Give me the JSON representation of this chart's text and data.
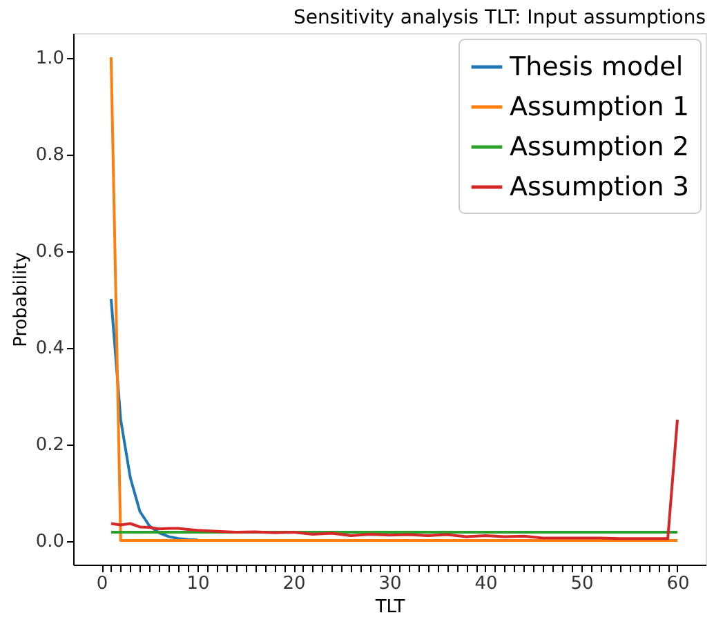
{
  "chart_data": {
    "type": "line",
    "title": "Sensitivity analysis TLT: Input assumptions",
    "xlabel": "TLT",
    "ylabel": "Probability",
    "xlim": [
      -2.95,
      62.95
    ],
    "ylim": [
      -0.05,
      1.05
    ],
    "xticks": [
      0,
      {
        "value": 1,
        "label": null
      },
      {
        "value": 2,
        "label": null
      },
      {
        "value": 3,
        "label": null
      },
      {
        "value": 4,
        "label": null
      },
      {
        "value": 5,
        "label": null
      },
      {
        "value": 6,
        "label": null
      },
      {
        "value": 7,
        "label": null
      },
      {
        "value": 8,
        "label": null
      },
      {
        "value": 9,
        "label": null
      },
      10,
      {
        "value": 11,
        "label": null
      },
      {
        "value": 12,
        "label": null
      },
      {
        "value": 13,
        "label": null
      },
      {
        "value": 14,
        "label": null
      },
      {
        "value": 15,
        "label": null
      },
      {
        "value": 16,
        "label": null
      },
      {
        "value": 17,
        "label": null
      },
      {
        "value": 18,
        "label": null
      },
      {
        "value": 19,
        "label": null
      },
      20,
      {
        "value": 21,
        "label": null
      },
      {
        "value": 22,
        "label": null
      },
      {
        "value": 23,
        "label": null
      },
      {
        "value": 24,
        "label": null
      },
      {
        "value": 25,
        "label": null
      },
      {
        "value": 26,
        "label": null
      },
      {
        "value": 27,
        "label": null
      },
      {
        "value": 28,
        "label": null
      },
      {
        "value": 29,
        "label": null
      },
      30,
      {
        "value": 31,
        "label": null
      },
      {
        "value": 32,
        "label": null
      },
      {
        "value": 33,
        "label": null
      },
      {
        "value": 34,
        "label": null
      },
      {
        "value": 35,
        "label": null
      },
      {
        "value": 36,
        "label": null
      },
      {
        "value": 37,
        "label": null
      },
      {
        "value": 38,
        "label": null
      },
      {
        "value": 39,
        "label": null
      },
      40,
      {
        "value": 41,
        "label": null
      },
      {
        "value": 42,
        "label": null
      },
      {
        "value": 43,
        "label": null
      },
      {
        "value": 44,
        "label": null
      },
      {
        "value": 45,
        "label": null
      },
      {
        "value": 46,
        "label": null
      },
      {
        "value": 47,
        "label": null
      },
      {
        "value": 48,
        "label": null
      },
      {
        "value": 49,
        "label": null
      },
      50,
      {
        "value": 51,
        "label": null
      },
      {
        "value": 52,
        "label": null
      },
      {
        "value": 53,
        "label": null
      },
      {
        "value": 54,
        "label": null
      },
      {
        "value": 55,
        "label": null
      },
      {
        "value": 56,
        "label": null
      },
      {
        "value": 57,
        "label": null
      },
      {
        "value": 58,
        "label": null
      },
      {
        "value": 59,
        "label": null
      },
      60
    ],
    "yticks": [
      {
        "value": 0,
        "label": "0.0"
      },
      {
        "value": 0.2,
        "label": "0.2"
      },
      {
        "value": 0.4,
        "label": "0.4"
      },
      {
        "value": 0.6,
        "label": "0.6"
      },
      {
        "value": 0.8,
        "label": "0.8"
      },
      {
        "value": 1,
        "label": "1.0"
      }
    ],
    "grid": false,
    "legend": "top right",
    "line_style": "solid",
    "marker": "none",
    "series": [
      {
        "name": "Thesis model",
        "color": "#1f77b4",
        "x": [
          1,
          2,
          3,
          4,
          5,
          6,
          7,
          8,
          9,
          10
        ],
        "values": [
          0.5,
          0.25,
          0.13,
          0.06,
          0.03,
          0.016,
          0.008,
          0.004,
          0.002,
          0.001
        ]
      },
      {
        "name": "Assumption 1",
        "color": "#ff7f0e",
        "x": [
          1,
          2,
          10,
          20,
          30,
          40,
          50,
          60
        ],
        "values": [
          1.0,
          0.0,
          0.0,
          0.0,
          0.0,
          0.0,
          0.0,
          0.0
        ]
      },
      {
        "name": "Assumption 2",
        "color": "#2ca02c",
        "x": [
          1,
          10,
          20,
          30,
          40,
          50,
          60
        ],
        "values": [
          0.017,
          0.017,
          0.017,
          0.017,
          0.017,
          0.017,
          0.017
        ]
      },
      {
        "name": "Assumption 3",
        "color": "#d62728",
        "x": [
          1,
          2,
          3,
          4,
          5,
          6,
          7,
          8,
          9,
          10,
          12,
          14,
          16,
          18,
          20,
          22,
          24,
          26,
          28,
          30,
          32,
          34,
          36,
          38,
          40,
          42,
          44,
          46,
          48,
          50,
          52,
          54,
          56,
          58,
          59,
          60
        ],
        "values": [
          0.035,
          0.032,
          0.035,
          0.028,
          0.027,
          0.024,
          0.025,
          0.025,
          0.023,
          0.021,
          0.019,
          0.017,
          0.018,
          0.016,
          0.017,
          0.013,
          0.015,
          0.01,
          0.013,
          0.011,
          0.012,
          0.01,
          0.012,
          0.008,
          0.01,
          0.008,
          0.009,
          0.005,
          0.005,
          0.005,
          0.005,
          0.004,
          0.004,
          0.004,
          0.004,
          0.25
        ]
      }
    ]
  }
}
